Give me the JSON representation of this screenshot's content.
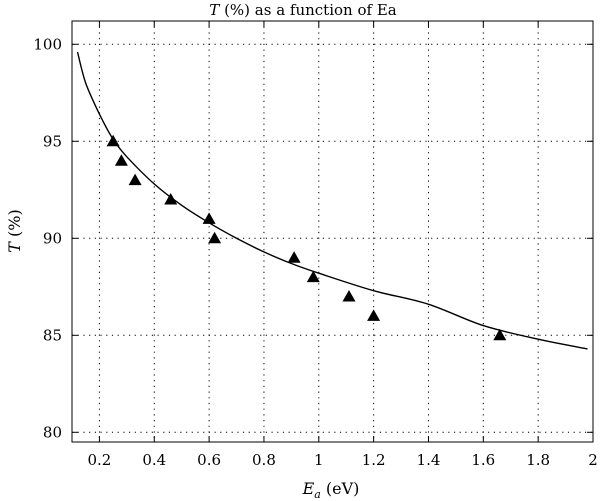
{
  "chart_data": {
    "type": "scatter",
    "title": {
      "var": "T",
      "rest": " (%) as a function of Ea"
    },
    "xlabel": {
      "var": "E",
      "sub": "a",
      "unit": " (eV)"
    },
    "ylabel": {
      "var": "T",
      "unit": " (%)"
    },
    "xlim": [
      0.1,
      2.0
    ],
    "ylim": [
      79.5,
      101.2
    ],
    "xticks": [
      0.2,
      0.4,
      0.6,
      0.8,
      1.0,
      1.2,
      1.4,
      1.6,
      1.8,
      2.0
    ],
    "xtick_labels": [
      "0.2",
      "0.4",
      "0.6",
      "0.8",
      "1",
      "1.2",
      "1.4",
      "1.6",
      "1.8",
      "2"
    ],
    "yticks": [
      80,
      85,
      90,
      95,
      100
    ],
    "ytick_labels": [
      "80",
      "85",
      "90",
      "95",
      "100"
    ],
    "grid": true,
    "marker": "triangle",
    "color": "#000000",
    "series": [
      {
        "type": "scatter",
        "points": [
          {
            "x": 0.25,
            "y": 95.0
          },
          {
            "x": 0.28,
            "y": 94.0
          },
          {
            "x": 0.33,
            "y": 93.0
          },
          {
            "x": 0.46,
            "y": 92.0
          },
          {
            "x": 0.6,
            "y": 91.0
          },
          {
            "x": 0.62,
            "y": 90.0
          },
          {
            "x": 0.91,
            "y": 89.0
          },
          {
            "x": 0.98,
            "y": 88.0
          },
          {
            "x": 1.11,
            "y": 87.0
          },
          {
            "x": 1.2,
            "y": 86.0
          },
          {
            "x": 1.66,
            "y": 85.0
          }
        ]
      },
      {
        "type": "line",
        "points": [
          {
            "x": 0.12,
            "y": 99.6
          },
          {
            "x": 0.15,
            "y": 98.0
          },
          {
            "x": 0.2,
            "y": 96.4
          },
          {
            "x": 0.25,
            "y": 95.1
          },
          {
            "x": 0.3,
            "y": 94.2
          },
          {
            "x": 0.4,
            "y": 92.8
          },
          {
            "x": 0.5,
            "y": 91.7
          },
          {
            "x": 0.6,
            "y": 90.8
          },
          {
            "x": 0.7,
            "y": 90.0
          },
          {
            "x": 0.8,
            "y": 89.3
          },
          {
            "x": 0.9,
            "y": 88.7
          },
          {
            "x": 1.0,
            "y": 88.2
          },
          {
            "x": 1.2,
            "y": 87.3
          },
          {
            "x": 1.4,
            "y": 86.6
          },
          {
            "x": 1.6,
            "y": 85.5
          },
          {
            "x": 1.8,
            "y": 84.8
          },
          {
            "x": 1.98,
            "y": 84.3
          }
        ]
      }
    ]
  }
}
